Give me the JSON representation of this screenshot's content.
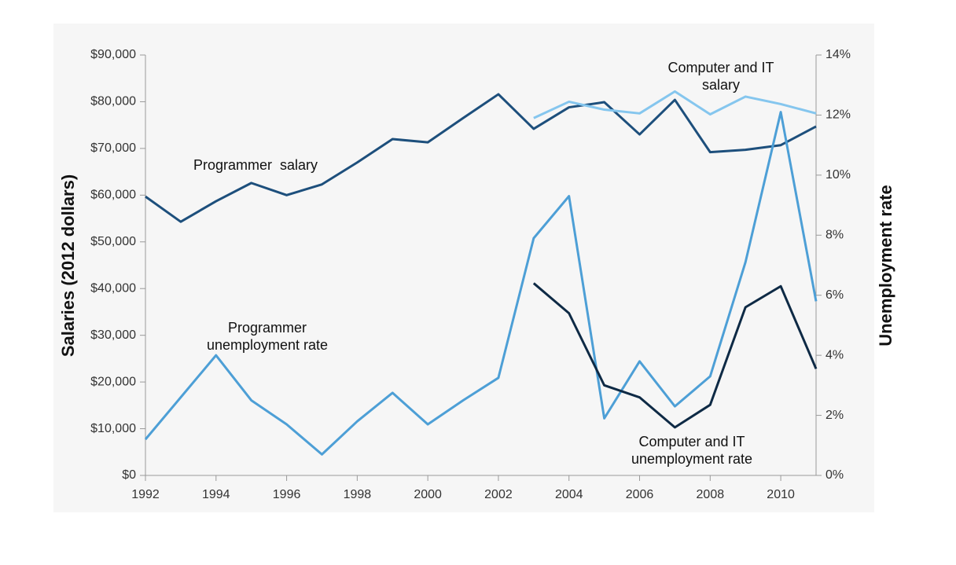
{
  "chart_data": {
    "type": "line",
    "y_label": "Salaries (2012 dollars)",
    "y2_label": "Unemployment rate",
    "x": [
      1992,
      1993,
      1994,
      1995,
      1996,
      1997,
      1998,
      1999,
      2000,
      2001,
      2002,
      2003,
      2004,
      2005,
      2006,
      2007,
      2008,
      2009,
      2010,
      2011
    ],
    "xlim": [
      1992,
      2011
    ],
    "xticks": [
      1992,
      1994,
      1996,
      1998,
      2000,
      2002,
      2004,
      2006,
      2008,
      2010
    ],
    "ylim": [
      0,
      90000
    ],
    "yticks": [
      {
        "value": 0,
        "label": "$0"
      },
      {
        "value": 10000,
        "label": "$10,000"
      },
      {
        "value": 20000,
        "label": "$20,000"
      },
      {
        "value": 30000,
        "label": "$30,000"
      },
      {
        "value": 40000,
        "label": "$40,000"
      },
      {
        "value": 50000,
        "label": "$50,000"
      },
      {
        "value": 60000,
        "label": "$60,000"
      },
      {
        "value": 70000,
        "label": "$70,000"
      },
      {
        "value": 80000,
        "label": "$80,000"
      },
      {
        "value": 90000,
        "label": "$90,000"
      }
    ],
    "y2lim": [
      0,
      14
    ],
    "y2ticks": [
      {
        "value": 0,
        "label": "0%"
      },
      {
        "value": 2,
        "label": "2%"
      },
      {
        "value": 4,
        "label": "4%"
      },
      {
        "value": 6,
        "label": "6%"
      },
      {
        "value": 8,
        "label": "8%"
      },
      {
        "value": 10,
        "label": "10%"
      },
      {
        "value": 12,
        "label": "12%"
      },
      {
        "value": 14,
        "label": "14%"
      }
    ],
    "series": [
      {
        "name": "Programmer  salary",
        "color": "#1d4f7c",
        "values": [
          59700,
          54300,
          58700,
          62600,
          60000,
          62300,
          67000,
          72000,
          71300,
          76500,
          81600,
          74200,
          78800,
          79900,
          73000,
          80400,
          69200,
          69700,
          70700,
          74700
        ]
      },
      {
        "name": "Computer and IT salary",
        "color": "#85c6ee",
        "values": [
          null,
          null,
          null,
          null,
          null,
          null,
          null,
          null,
          null,
          null,
          null,
          76500,
          80000,
          78300,
          77500,
          82200,
          77300,
          81100,
          79500,
          77500
        ]
      },
      {
        "name": "Programmer unemployment rate",
        "color": "#4d9fd6",
        "axis": "y2",
        "values": [
          1.2,
          2.6,
          4.0,
          2.5,
          1.7,
          0.7,
          1.8,
          2.75,
          1.7,
          2.5,
          3.25,
          7.9,
          9.3,
          1.9,
          3.8,
          2.3,
          3.3,
          7.1,
          12.1,
          5.8
        ]
      },
      {
        "name": "Computer and IT unemployment rate",
        "color": "#0e2a45",
        "axis": "y2",
        "values": [
          null,
          null,
          null,
          null,
          null,
          null,
          null,
          null,
          null,
          null,
          null,
          6.4,
          5.4,
          3.0,
          2.6,
          1.6,
          2.35,
          5.6,
          6.3,
          3.55
        ]
      }
    ]
  }
}
